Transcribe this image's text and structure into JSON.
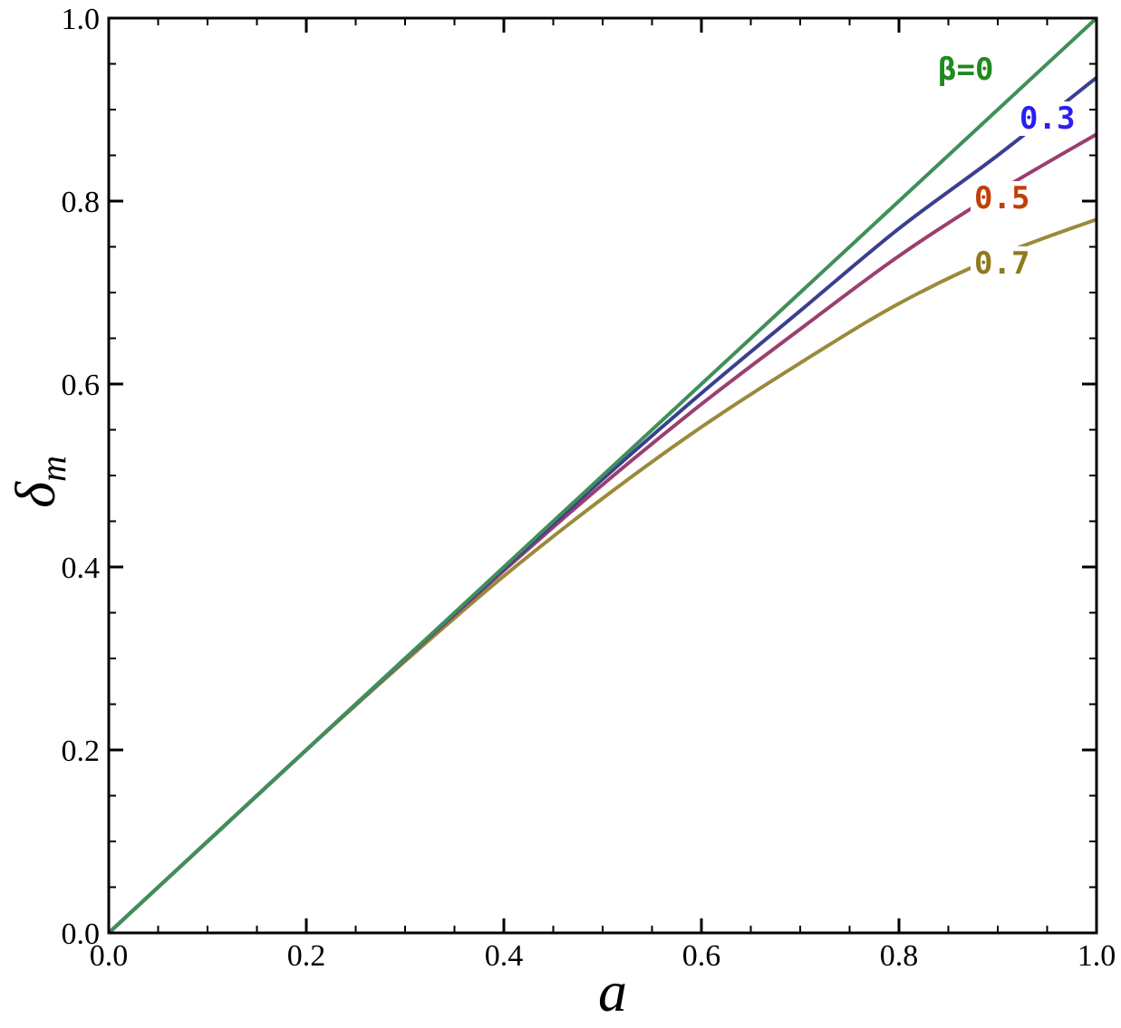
{
  "chart_data": {
    "type": "line",
    "xlabel": "a",
    "ylabel_main": "δ",
    "ylabel_sub": "m",
    "xlim": [
      0,
      1
    ],
    "ylim": [
      0,
      1
    ],
    "x_ticks": [
      "0.0",
      "0.2",
      "0.4",
      "0.6",
      "0.8",
      "1.0"
    ],
    "y_ticks": [
      "0.0",
      "0.2",
      "0.4",
      "0.6",
      "0.8",
      "1.0"
    ],
    "grid": false,
    "frame": "box with ticks on all sides",
    "series": [
      {
        "name": "β=0",
        "color": "#3f8f5a",
        "label_color": "#1f8a1f",
        "x": [
          0,
          0.1,
          0.2,
          0.3,
          0.4,
          0.5,
          0.6,
          0.7,
          0.8,
          0.9,
          1.0
        ],
        "y": [
          0,
          0.1,
          0.2,
          0.3,
          0.4,
          0.5,
          0.6,
          0.7,
          0.8,
          0.9,
          1.0
        ]
      },
      {
        "name": "0.3",
        "color": "#3a3f8f",
        "label_color": "#2a1ff0",
        "x": [
          0,
          0.1,
          0.2,
          0.3,
          0.4,
          0.5,
          0.6,
          0.7,
          0.8,
          0.9,
          1.0
        ],
        "y": [
          0,
          0.1,
          0.2,
          0.3,
          0.398,
          0.496,
          0.59,
          0.68,
          0.77,
          0.85,
          0.935
        ]
      },
      {
        "name": "0.5",
        "color": "#9a3f6f",
        "label_color": "#c0400a",
        "x": [
          0,
          0.1,
          0.2,
          0.3,
          0.4,
          0.5,
          0.6,
          0.7,
          0.8,
          0.9,
          1.0
        ],
        "y": [
          0,
          0.1,
          0.2,
          0.299,
          0.396,
          0.49,
          0.578,
          0.66,
          0.74,
          0.81,
          0.873
        ]
      },
      {
        "name": "0.7",
        "color": "#9a8a3a",
        "label_color": "#8f7a1f",
        "x": [
          0,
          0.1,
          0.2,
          0.3,
          0.4,
          0.5,
          0.6,
          0.7,
          0.8,
          0.9,
          1.0
        ],
        "y": [
          0,
          0.1,
          0.2,
          0.297,
          0.39,
          0.475,
          0.553,
          0.623,
          0.688,
          0.74,
          0.78
        ]
      }
    ]
  }
}
